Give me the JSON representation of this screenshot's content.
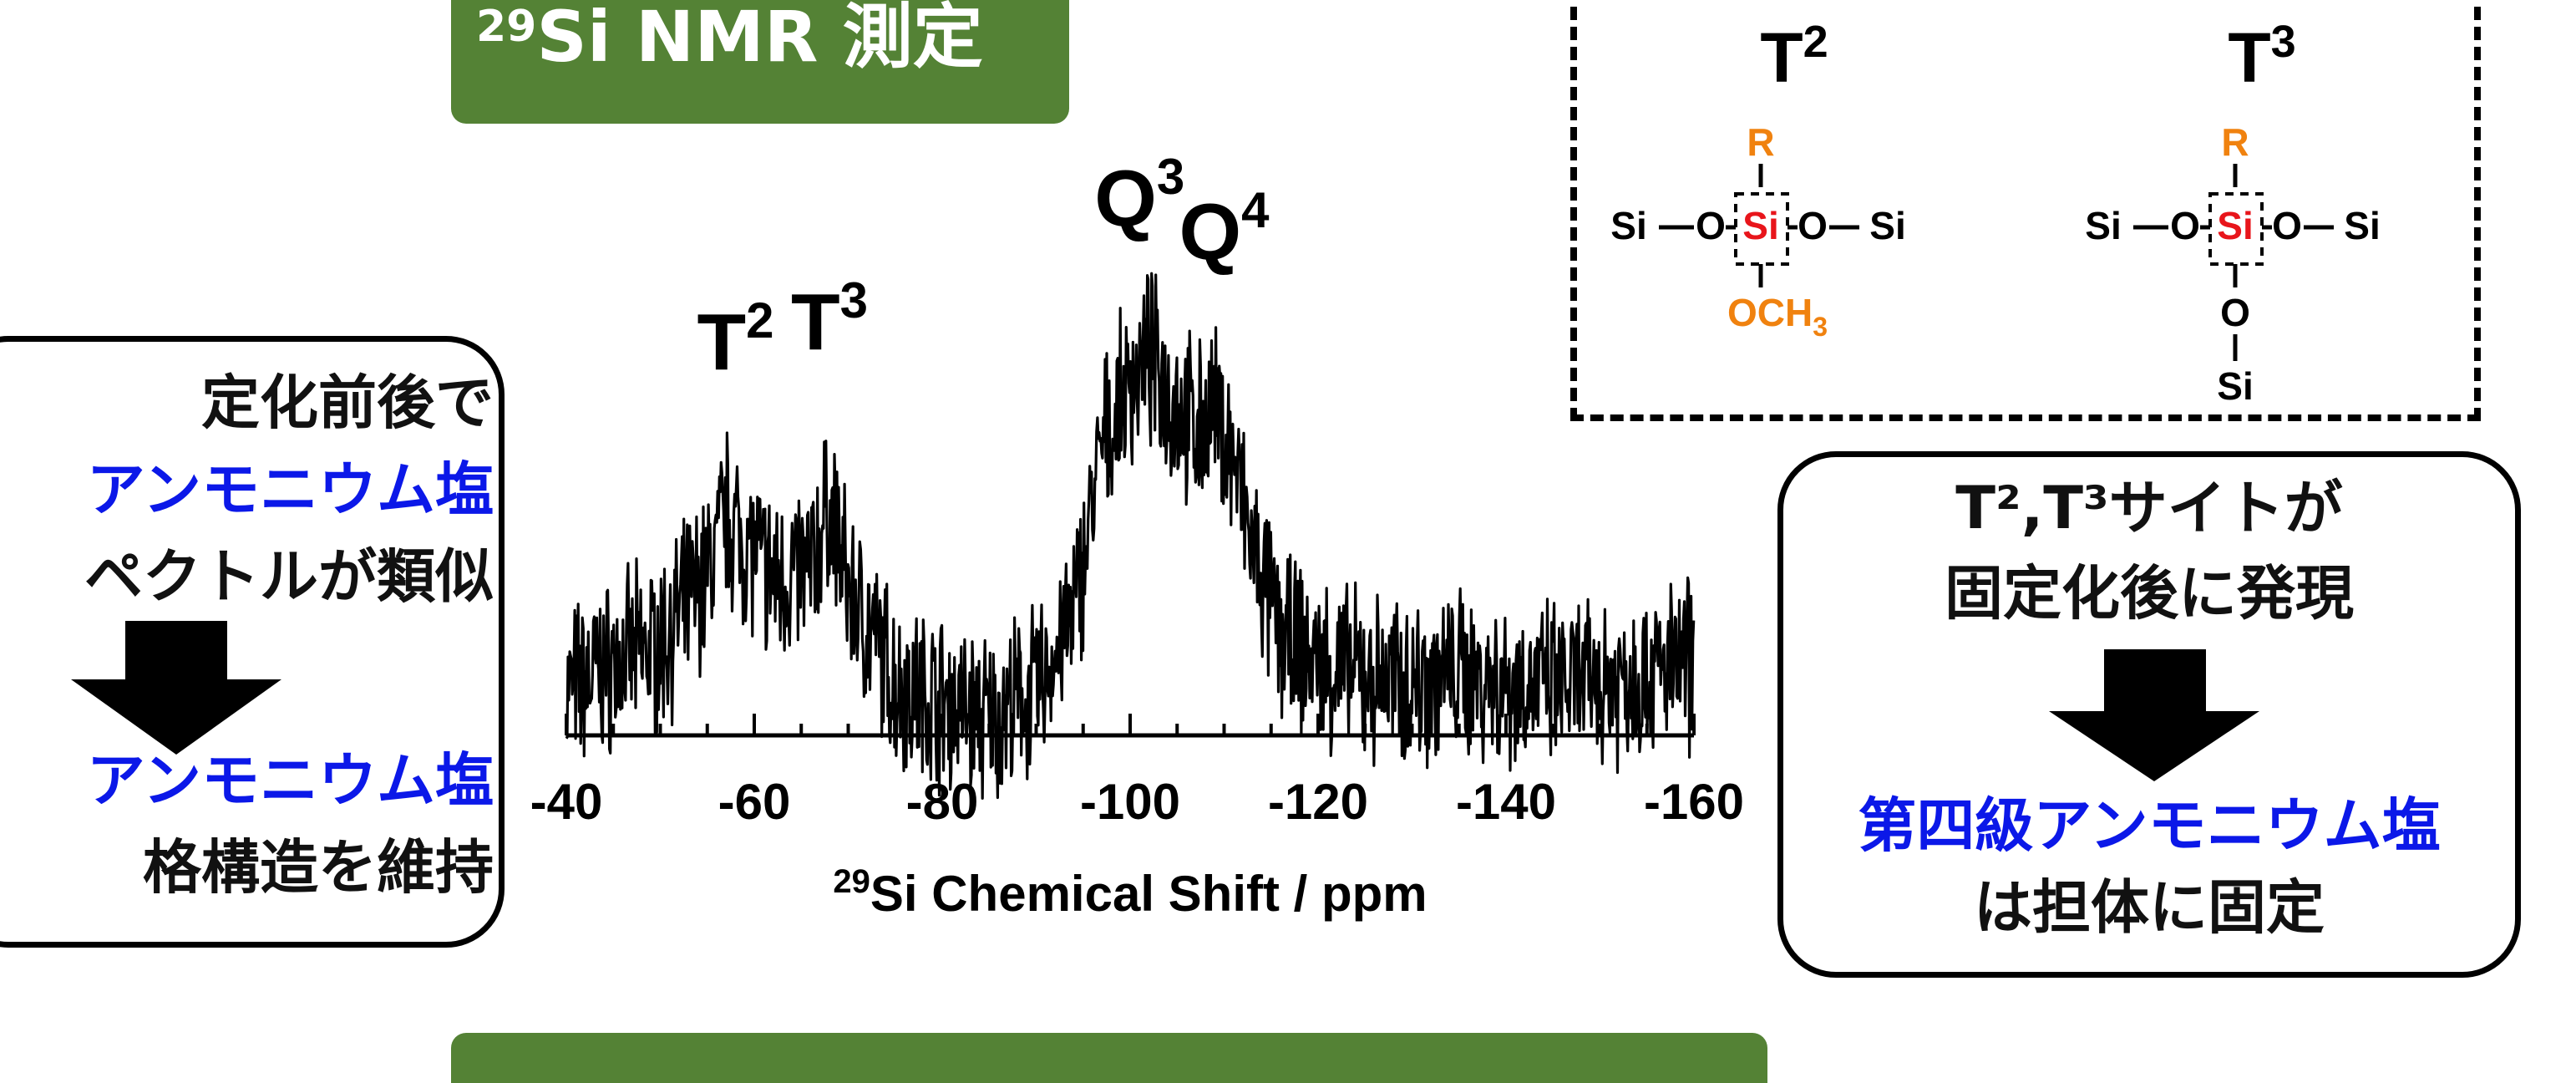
{
  "header_tab": {
    "sup": "29",
    "text": "Si NMR 測定"
  },
  "left_box": {
    "line1": "定化前後で",
    "line2": "アンモニウム塩",
    "line3": "ペクトルが類似",
    "line4": "アンモニウム塩",
    "line5": "格構造を維持"
  },
  "right_box": {
    "line1": "T²,T³サイトが",
    "line2": "固定化後に発現",
    "line3": "第四級アンモニウム塩",
    "line4": "は担体に固定"
  },
  "structures": {
    "t2_label_base": "T",
    "t2_label_sup": "2",
    "t3_label_base": "T",
    "t3_label_sup": "3",
    "r": "R",
    "si": "Si",
    "o": "O",
    "och3_base": "OCH",
    "och3_sub": "3"
  },
  "colors": {
    "green": "#548235",
    "blue": "#0b18e8",
    "orange": "#f0820f",
    "red": "#e8151b"
  },
  "chart_data": {
    "type": "line",
    "xlabel_sup": "29",
    "xlabel": "Si Chemical Shift / ppm",
    "xlim": [
      -40,
      -160
    ],
    "x_ticks": [
      -40,
      -60,
      -80,
      -100,
      -120,
      -140,
      -160
    ],
    "tick_labels": [
      "-40",
      "-60",
      "-80",
      "-100",
      "-120",
      "-140",
      "-160"
    ],
    "grid": false,
    "y_axis_shown": false,
    "peaks": [
      {
        "label": "T",
        "sup": "2",
        "x": -58
      },
      {
        "label": "T",
        "sup": "3",
        "x": -68
      },
      {
        "label": "Q",
        "sup": "3",
        "x": -101
      },
      {
        "label": "Q",
        "sup": "4",
        "x": -110
      }
    ],
    "series": [
      {
        "values_note_free": true,
        "x": [
          -40,
          -45,
          -50,
          -55,
          -57,
          -59,
          -62,
          -66,
          -68,
          -70,
          -75,
          -80,
          -85,
          -90,
          -94,
          -97,
          -100,
          -102,
          -104,
          -107,
          -109,
          -111,
          -113,
          -116,
          -120,
          -125,
          -130,
          -135,
          -140,
          -145,
          -150,
          -155,
          -160
        ],
        "y": [
          0.2,
          0.26,
          0.3,
          0.45,
          0.58,
          0.52,
          0.44,
          0.46,
          0.6,
          0.42,
          0.22,
          0.18,
          0.14,
          0.2,
          0.36,
          0.72,
          0.86,
          0.92,
          0.84,
          0.76,
          0.8,
          0.7,
          0.5,
          0.32,
          0.26,
          0.23,
          0.22,
          0.24,
          0.22,
          0.21,
          0.22,
          0.24,
          0.26
        ]
      }
    ]
  }
}
